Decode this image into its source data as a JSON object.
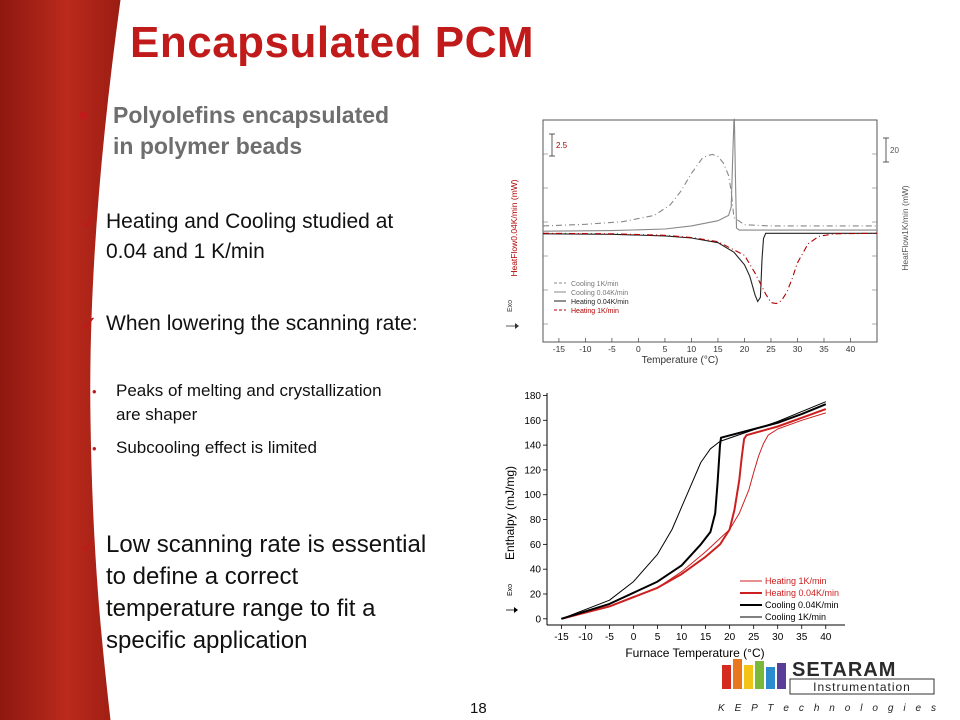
{
  "slide": {
    "title": "Encapsulated PCM",
    "subheading": "Polyolefins encapsulated\nin polymer beads",
    "points": [
      "Heating and Cooling studied at\n0.04 and 1 K/min",
      "When lowering the scanning rate:",
      "Low scanning rate is essential\nto define a correct\ntemperature range to fit a\nspecific application"
    ],
    "subpoints": [
      "Peaks of melting and crystallization\nare shaper",
      "Subcooling effect is limited"
    ],
    "page_number": "18",
    "colors": {
      "title": "#c01a1a",
      "sidebar": "#b12318",
      "accent": "#c01a1a"
    }
  },
  "logo": {
    "wordmark": "SETARAM",
    "line1": "Instrumentation",
    "line2": "K E P   T e c h n o l o g i e s"
  },
  "chart_data": [
    {
      "type": "line",
      "title": "",
      "xlabel": "Temperature (°C)",
      "ylabel_left": "HeatFlow0.04K/min (mW)",
      "ylabel_right": "HeatFlow1K/min (mW)",
      "exo_label": "Exo",
      "xlim": [
        -18,
        45
      ],
      "xticks": [
        -15,
        -10,
        -5,
        0,
        5,
        10,
        15,
        20,
        25,
        30,
        35,
        40
      ],
      "scale_left": "2.5",
      "scale_right": "20",
      "legend": [
        "Cooling 1K/min",
        "Cooling 0.04K/min",
        "Heating 0.04K/min",
        "Heating 1K/min"
      ],
      "series": [
        {
          "name": "Cooling 1K/min",
          "color": "#888888",
          "dash": "6,3,1,3",
          "x": [
            -18,
            -10,
            -3,
            3,
            6,
            8,
            10,
            12,
            13,
            14,
            15,
            16,
            17,
            17.5,
            18,
            20,
            25,
            35,
            45
          ],
          "y": [
            0.2,
            0.35,
            0.6,
            1.2,
            2.2,
            3.5,
            5.2,
            6.6,
            6.9,
            7.0,
            6.8,
            6.2,
            5.0,
            3.5,
            1.0,
            0.3,
            0.2,
            0.2,
            0.2
          ]
        },
        {
          "name": "Cooling 0.04K/min",
          "color": "#888888",
          "dash": "",
          "x": [
            -18,
            -5,
            5,
            10,
            15,
            17,
            17.5,
            17.8,
            18,
            18.1,
            18.3,
            18.5,
            19,
            30,
            45
          ],
          "y": [
            -0.3,
            -0.25,
            -0.1,
            0.2,
            0.7,
            1.2,
            2.0,
            7.0,
            10.2,
            10.4,
            5.0,
            0.0,
            -0.2,
            -0.2,
            -0.2
          ]
        },
        {
          "name": "Heating 0.04K/min",
          "color": "#222222",
          "dash": "",
          "x": [
            -18,
            -5,
            5,
            10,
            15,
            18,
            20,
            21,
            22,
            22.5,
            23,
            23.3,
            23.6,
            24,
            30,
            45
          ],
          "y": [
            -0.55,
            -0.6,
            -0.75,
            -0.95,
            -1.4,
            -2.3,
            -3.5,
            -4.6,
            -6.4,
            -7.0,
            -6.6,
            -3.0,
            -1.0,
            -0.5,
            -0.5,
            -0.5
          ]
        },
        {
          "name": "Heating 1K/min",
          "color": "#b00000",
          "dash": "6,3,1,3",
          "x": [
            -18,
            -5,
            5,
            10,
            15,
            20,
            22,
            24,
            25,
            26,
            27,
            28,
            29,
            30,
            32,
            34,
            37,
            45
          ],
          "y": [
            -0.5,
            -0.55,
            -0.7,
            -0.9,
            -1.3,
            -2.6,
            -4.3,
            -6.3,
            -7.1,
            -7.2,
            -6.9,
            -6.1,
            -4.8,
            -3.3,
            -1.5,
            -0.8,
            -0.55,
            -0.5
          ]
        }
      ]
    },
    {
      "type": "line",
      "title": "",
      "xlabel": "Furnace Temperature (°C)",
      "ylabel": "Enthalpy (mJ/mg)",
      "exo_label": "Exo",
      "xlim": [
        -18,
        44
      ],
      "ylim": [
        -5,
        182
      ],
      "xticks": [
        -15,
        -10,
        -5,
        0,
        5,
        10,
        15,
        20,
        25,
        30,
        35,
        40
      ],
      "yticks": [
        0,
        20,
        40,
        60,
        80,
        100,
        120,
        140,
        160,
        180
      ],
      "series": [
        {
          "name": "Heating 1K/min",
          "color": "#cc2020",
          "width": 1,
          "x": [
            -15,
            -5,
            5,
            10,
            15,
            20,
            22,
            24,
            25,
            26,
            27,
            28,
            30,
            35,
            40
          ],
          "y": [
            0,
            10,
            25,
            38,
            54,
            72,
            85,
            104,
            118,
            131,
            141,
            148,
            153,
            160,
            166
          ]
        },
        {
          "name": "Heating 0.04K/min",
          "color": "#cc2020",
          "width": 2,
          "x": [
            -15,
            -5,
            5,
            10,
            15,
            18,
            20,
            21,
            22,
            22.5,
            23,
            23.5,
            30,
            35,
            40
          ],
          "y": [
            0,
            10,
            25,
            36,
            50,
            60,
            72,
            88,
            112,
            130,
            145,
            148,
            155,
            162,
            169
          ]
        },
        {
          "name": "Cooling 0.04K/min",
          "color": "#000000",
          "width": 2,
          "x": [
            -15,
            -5,
            5,
            10,
            14,
            16,
            17,
            17.5,
            18,
            18.2,
            30,
            35,
            40
          ],
          "y": [
            0,
            12,
            30,
            43,
            60,
            70,
            85,
            110,
            140,
            146,
            158,
            165,
            173
          ]
        },
        {
          "name": "Cooling 1K/min",
          "color": "#000000",
          "width": 1,
          "x": [
            -15,
            -5,
            0,
            5,
            8,
            10,
            12,
            14,
            16,
            17,
            18,
            30,
            35,
            40
          ],
          "y": [
            0,
            15,
            30,
            52,
            72,
            90,
            108,
            126,
            137,
            140,
            143,
            159,
            167,
            175
          ]
        }
      ]
    }
  ]
}
